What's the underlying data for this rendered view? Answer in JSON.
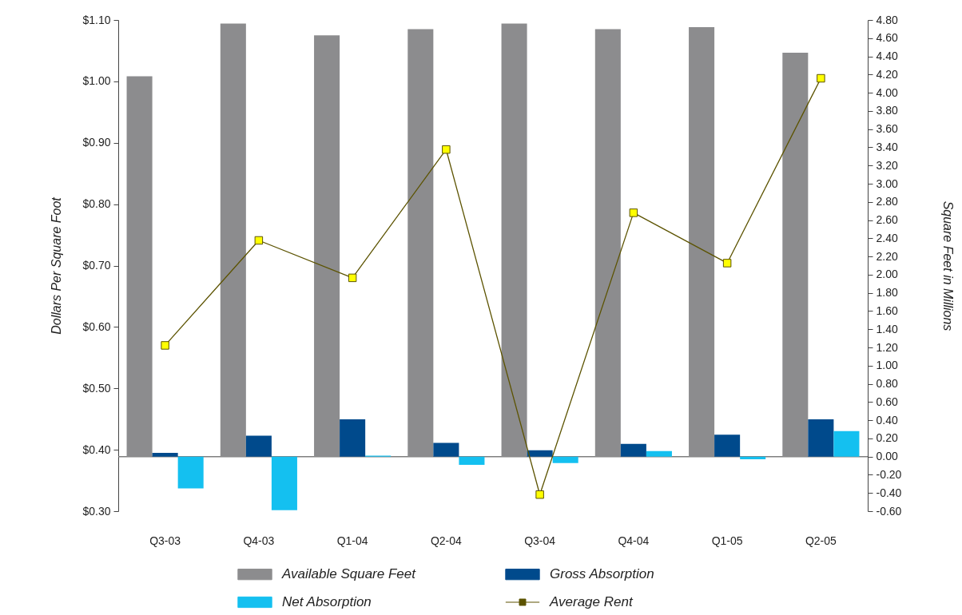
{
  "chart_data": {
    "type": "bar",
    "ylabel": "Dollars Per Square Foot",
    "y2label": "Square Feet in Millions",
    "categories": [
      "Q3-03",
      "Q4-03",
      "Q1-04",
      "Q2-04",
      "Q3-04",
      "Q4-04",
      "Q1-05",
      "Q2-05"
    ],
    "series": [
      {
        "name": "Available Square Feet",
        "color": "#8c8c8e",
        "axis": "y2",
        "values": [
          4.18,
          4.76,
          4.63,
          4.7,
          4.76,
          4.7,
          4.72,
          4.44
        ]
      },
      {
        "name": "Gross Absorption",
        "color": "#004a8c",
        "axis": "y2",
        "values": [
          0.04,
          0.23,
          0.41,
          0.15,
          0.07,
          0.14,
          0.24,
          0.41
        ]
      },
      {
        "name": "Net Absorption",
        "color": "#14c0f0",
        "axis": "y2",
        "values": [
          -0.35,
          -0.59,
          0.01,
          -0.09,
          -0.07,
          0.06,
          -0.03,
          0.28
        ]
      },
      {
        "name": "Average Rent",
        "type": "line",
        "color": "#5c5300",
        "axis": "y",
        "marker": "square",
        "values": [
          0.57,
          0.741,
          0.68,
          0.889,
          0.327,
          0.786,
          0.704,
          1.005
        ]
      }
    ],
    "ylim": [
      0.3,
      1.1
    ],
    "yticks": [
      {
        "value": 0.3,
        "label": "$0.30"
      },
      {
        "value": 0.4,
        "label": "$0.40"
      },
      {
        "value": 0.5,
        "label": "$0.50"
      },
      {
        "value": 0.6,
        "label": "$0.60"
      },
      {
        "value": 0.7,
        "label": "$0.70"
      },
      {
        "value": 0.8,
        "label": "$0.80"
      },
      {
        "value": 0.9,
        "label": "$0.90"
      },
      {
        "value": 1.0,
        "label": "$1.00"
      },
      {
        "value": 1.1,
        "label": "$1.10"
      }
    ],
    "y2lim": [
      -0.6,
      4.8
    ],
    "y2ticks": [
      {
        "value": -0.6,
        "label": "-0.60"
      },
      {
        "value": -0.4,
        "label": "-0.40"
      },
      {
        "value": -0.2,
        "label": "-0.20"
      },
      {
        "value": 0,
        "label": "0.00"
      },
      {
        "value": 0.2,
        "label": "0.20"
      },
      {
        "value": 0.4,
        "label": "0.40"
      },
      {
        "value": 0.6,
        "label": "0.60"
      },
      {
        "value": 0.8,
        "label": "0.80"
      },
      {
        "value": 1.0,
        "label": "1.00"
      },
      {
        "value": 1.2,
        "label": "1.20"
      },
      {
        "value": 1.4,
        "label": "1.40"
      },
      {
        "value": 1.6,
        "label": "1.60"
      },
      {
        "value": 1.8,
        "label": "1.80"
      },
      {
        "value": 2.0,
        "label": "2.00"
      },
      {
        "value": 2.2,
        "label": "2.20"
      },
      {
        "value": 2.4,
        "label": "2.40"
      },
      {
        "value": 2.6,
        "label": "2.60"
      },
      {
        "value": 2.8,
        "label": "2.80"
      },
      {
        "value": 3.0,
        "label": "3.00"
      },
      {
        "value": 3.2,
        "label": "3.20"
      },
      {
        "value": 3.4,
        "label": "3.40"
      },
      {
        "value": 3.6,
        "label": "3.60"
      },
      {
        "value": 3.8,
        "label": "3.80"
      },
      {
        "value": 4.0,
        "label": "4.00"
      },
      {
        "value": 4.2,
        "label": "4.20"
      },
      {
        "value": 4.4,
        "label": "4.40"
      },
      {
        "value": 4.6,
        "label": "4.60"
      },
      {
        "value": 4.8,
        "label": "4.80"
      }
    ],
    "ref_lines": [
      {
        "axis": "y2",
        "value": 0,
        "color": "#7f7f7f"
      }
    ],
    "legend": "bottom",
    "grid": false
  }
}
